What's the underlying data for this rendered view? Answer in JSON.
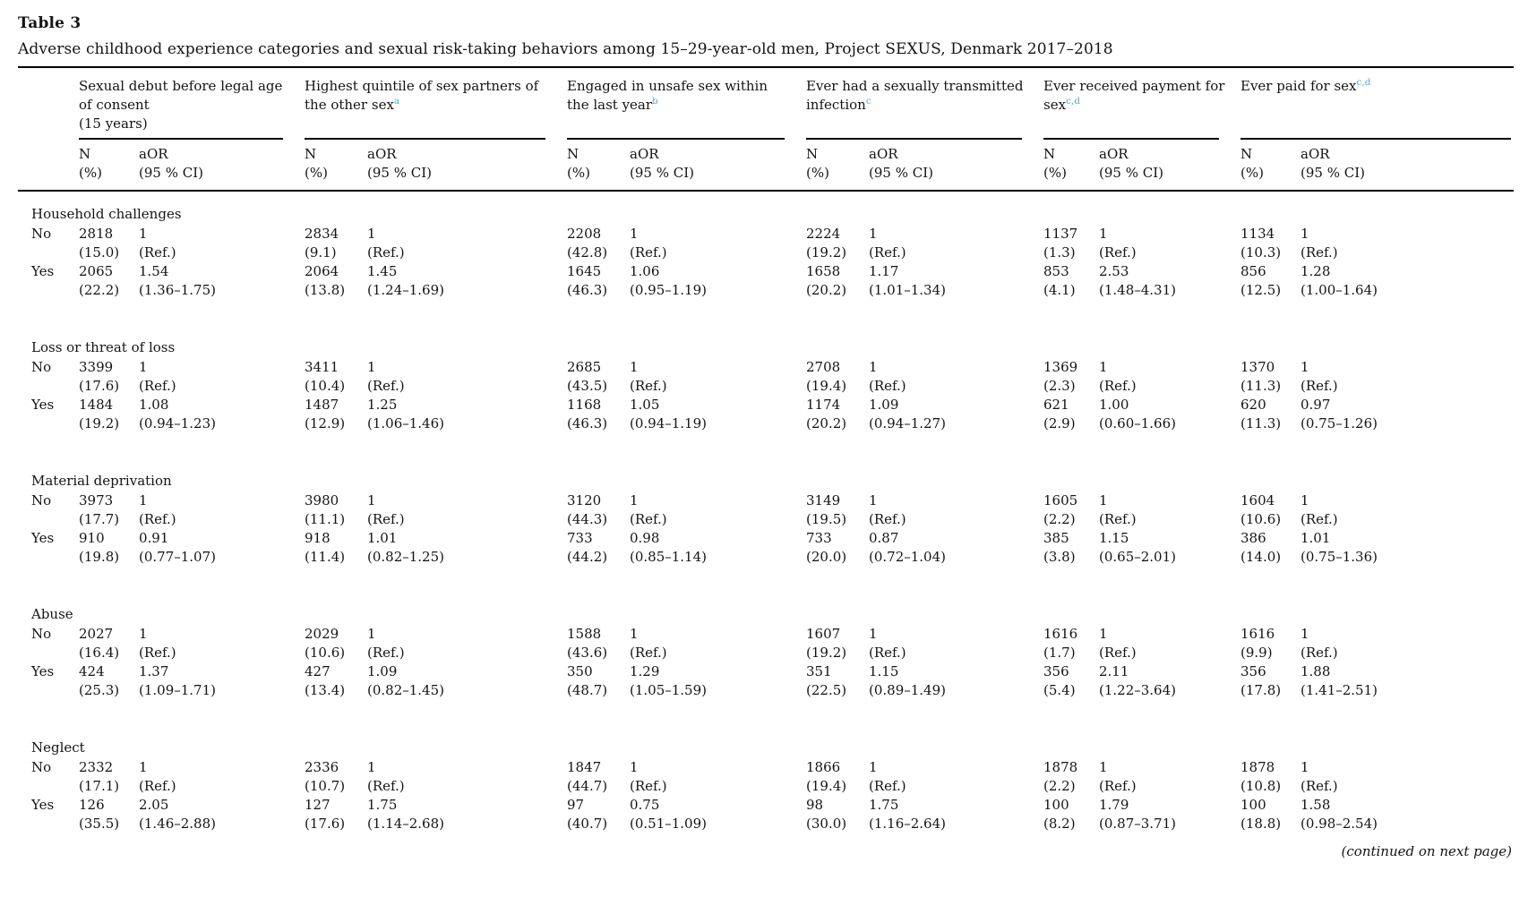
{
  "title": "Table 3",
  "caption": "Adverse childhood experience categories and sexual risk-taking behaviors among 15–29-year-old men, Project SEXUS, Denmark 2017–2018",
  "continued_note": "(continued on next page)",
  "accent_color": "#57a7d9",
  "col_groups": [
    {
      "title": "Sexual debut before legal age of consent",
      "subtitle": "(15 years)",
      "sup": ""
    },
    {
      "title": "Highest quintile of sex partners of the other sex",
      "subtitle": "",
      "sup": "a"
    },
    {
      "title": "Engaged in unsafe sex within the last year",
      "subtitle": "",
      "sup": "b"
    },
    {
      "title": "Ever had a sexually transmitted infection",
      "subtitle": "",
      "sup": "c"
    },
    {
      "title": "Ever received payment for sex",
      "subtitle": "",
      "sup": "c,d"
    },
    {
      "title": "Ever paid for sex",
      "subtitle": "",
      "sup": "c,d"
    }
  ],
  "subheader": {
    "n1": "N",
    "n2": "(%)",
    "a1": "aOR",
    "a2": "(95 % CI)"
  },
  "sections": [
    {
      "label": "Household challenges",
      "rows": [
        {
          "level": "No",
          "cells": [
            {
              "n": "2818",
              "pct": "(15.0)",
              "aor": "1",
              "ci": "(Ref.)"
            },
            {
              "n": "2834",
              "pct": "(9.1)",
              "aor": "1",
              "ci": "(Ref.)"
            },
            {
              "n": "2208",
              "pct": "(42.8)",
              "aor": "1",
              "ci": "(Ref.)"
            },
            {
              "n": "2224",
              "pct": "(19.2)",
              "aor": "1",
              "ci": "(Ref.)"
            },
            {
              "n": "1137",
              "pct": "(1.3)",
              "aor": "1",
              "ci": "(Ref.)"
            },
            {
              "n": "1134",
              "pct": "(10.3)",
              "aor": "1",
              "ci": "(Ref.)"
            }
          ]
        },
        {
          "level": "Yes",
          "cells": [
            {
              "n": "2065",
              "pct": "(22.2)",
              "aor": "1.54",
              "ci": "(1.36–1.75)"
            },
            {
              "n": "2064",
              "pct": "(13.8)",
              "aor": "1.45",
              "ci": "(1.24–1.69)"
            },
            {
              "n": "1645",
              "pct": "(46.3)",
              "aor": "1.06",
              "ci": "(0.95–1.19)"
            },
            {
              "n": "1658",
              "pct": "(20.2)",
              "aor": "1.17",
              "ci": "(1.01–1.34)"
            },
            {
              "n": "853",
              "pct": "(4.1)",
              "aor": "2.53",
              "ci": "(1.48–4.31)"
            },
            {
              "n": "856",
              "pct": "(12.5)",
              "aor": "1.28",
              "ci": "(1.00–1.64)"
            }
          ]
        }
      ]
    },
    {
      "label": "Loss or threat of loss",
      "rows": [
        {
          "level": "No",
          "cells": [
            {
              "n": "3399",
              "pct": "(17.6)",
              "aor": "1",
              "ci": "(Ref.)"
            },
            {
              "n": "3411",
              "pct": "(10.4)",
              "aor": "1",
              "ci": "(Ref.)"
            },
            {
              "n": "2685",
              "pct": "(43.5)",
              "aor": "1",
              "ci": "(Ref.)"
            },
            {
              "n": "2708",
              "pct": "(19.4)",
              "aor": "1",
              "ci": "(Ref.)"
            },
            {
              "n": "1369",
              "pct": "(2.3)",
              "aor": "1",
              "ci": "(Ref.)"
            },
            {
              "n": "1370",
              "pct": "(11.3)",
              "aor": "1",
              "ci": "(Ref.)"
            }
          ]
        },
        {
          "level": "Yes",
          "cells": [
            {
              "n": "1484",
              "pct": "(19.2)",
              "aor": "1.08",
              "ci": "(0.94–1.23)"
            },
            {
              "n": "1487",
              "pct": "(12.9)",
              "aor": "1.25",
              "ci": "(1.06–1.46)"
            },
            {
              "n": "1168",
              "pct": "(46.3)",
              "aor": "1.05",
              "ci": "(0.94–1.19)"
            },
            {
              "n": "1174",
              "pct": "(20.2)",
              "aor": "1.09",
              "ci": "(0.94–1.27)"
            },
            {
              "n": "621",
              "pct": "(2.9)",
              "aor": "1.00",
              "ci": "(0.60–1.66)"
            },
            {
              "n": "620",
              "pct": "(11.3)",
              "aor": "0.97",
              "ci": "(0.75–1.26)"
            }
          ]
        }
      ]
    },
    {
      "label": "Material deprivation",
      "rows": [
        {
          "level": "No",
          "cells": [
            {
              "n": "3973",
              "pct": "(17.7)",
              "aor": "1",
              "ci": "(Ref.)"
            },
            {
              "n": "3980",
              "pct": "(11.1)",
              "aor": "1",
              "ci": "(Ref.)"
            },
            {
              "n": "3120",
              "pct": "(44.3)",
              "aor": "1",
              "ci": "(Ref.)"
            },
            {
              "n": "3149",
              "pct": "(19.5)",
              "aor": "1",
              "ci": "(Ref.)"
            },
            {
              "n": "1605",
              "pct": "(2.2)",
              "aor": "1",
              "ci": "(Ref.)"
            },
            {
              "n": "1604",
              "pct": "(10.6)",
              "aor": "1",
              "ci": "(Ref.)"
            }
          ]
        },
        {
          "level": "Yes",
          "cells": [
            {
              "n": "910",
              "pct": "(19.8)",
              "aor": "0.91",
              "ci": "(0.77–1.07)"
            },
            {
              "n": "918",
              "pct": "(11.4)",
              "aor": "1.01",
              "ci": "(0.82–1.25)"
            },
            {
              "n": "733",
              "pct": "(44.2)",
              "aor": "0.98",
              "ci": "(0.85–1.14)"
            },
            {
              "n": "733",
              "pct": "(20.0)",
              "aor": "0.87",
              "ci": "(0.72–1.04)"
            },
            {
              "n": "385",
              "pct": "(3.8)",
              "aor": "1.15",
              "ci": "(0.65–2.01)"
            },
            {
              "n": "386",
              "pct": "(14.0)",
              "aor": "1.01",
              "ci": "(0.75–1.36)"
            }
          ]
        }
      ]
    },
    {
      "label": "Abuse",
      "rows": [
        {
          "level": "No",
          "cells": [
            {
              "n": "2027",
              "pct": "(16.4)",
              "aor": "1",
              "ci": "(Ref.)"
            },
            {
              "n": "2029",
              "pct": "(10.6)",
              "aor": "1",
              "ci": "(Ref.)"
            },
            {
              "n": "1588",
              "pct": "(43.6)",
              "aor": "1",
              "ci": "(Ref.)"
            },
            {
              "n": "1607",
              "pct": "(19.2)",
              "aor": "1",
              "ci": "(Ref.)"
            },
            {
              "n": "1616",
              "pct": "(1.7)",
              "aor": "1",
              "ci": "(Ref.)"
            },
            {
              "n": "1616",
              "pct": "(9.9)",
              "aor": "1",
              "ci": "(Ref.)"
            }
          ]
        },
        {
          "level": "Yes",
          "cells": [
            {
              "n": "424",
              "pct": "(25.3)",
              "aor": "1.37",
              "ci": "(1.09–1.71)"
            },
            {
              "n": "427",
              "pct": "(13.4)",
              "aor": "1.09",
              "ci": "(0.82–1.45)"
            },
            {
              "n": "350",
              "pct": "(48.7)",
              "aor": "1.29",
              "ci": "(1.05–1.59)"
            },
            {
              "n": "351",
              "pct": "(22.5)",
              "aor": "1.15",
              "ci": "(0.89–1.49)"
            },
            {
              "n": "356",
              "pct": "(5.4)",
              "aor": "2.11",
              "ci": "(1.22–3.64)"
            },
            {
              "n": "356",
              "pct": "(17.8)",
              "aor": "1.88",
              "ci": "(1.41–2.51)"
            }
          ]
        }
      ]
    },
    {
      "label": "Neglect",
      "rows": [
        {
          "level": "No",
          "cells": [
            {
              "n": "2332",
              "pct": "(17.1)",
              "aor": "1",
              "ci": "(Ref.)"
            },
            {
              "n": "2336",
              "pct": "(10.7)",
              "aor": "1",
              "ci": "(Ref.)"
            },
            {
              "n": "1847",
              "pct": "(44.7)",
              "aor": "1",
              "ci": "(Ref.)"
            },
            {
              "n": "1866",
              "pct": "(19.4)",
              "aor": "1",
              "ci": "(Ref.)"
            },
            {
              "n": "1878",
              "pct": "(2.2)",
              "aor": "1",
              "ci": "(Ref.)"
            },
            {
              "n": "1878",
              "pct": "(10.8)",
              "aor": "1",
              "ci": "(Ref.)"
            }
          ]
        },
        {
          "level": "Yes",
          "cells": [
            {
              "n": "126",
              "pct": "(35.5)",
              "aor": "2.05",
              "ci": "(1.46–2.88)"
            },
            {
              "n": "127",
              "pct": "(17.6)",
              "aor": "1.75",
              "ci": "(1.14–2.68)"
            },
            {
              "n": "97",
              "pct": "(40.7)",
              "aor": "0.75",
              "ci": "(0.51–1.09)"
            },
            {
              "n": "98",
              "pct": "(30.0)",
              "aor": "1.75",
              "ci": "(1.16–2.64)"
            },
            {
              "n": "100",
              "pct": "(8.2)",
              "aor": "1.79",
              "ci": "(0.87–3.71)"
            },
            {
              "n": "100",
              "pct": "(18.8)",
              "aor": "1.58",
              "ci": "(0.98–2.54)"
            }
          ]
        }
      ]
    }
  ]
}
